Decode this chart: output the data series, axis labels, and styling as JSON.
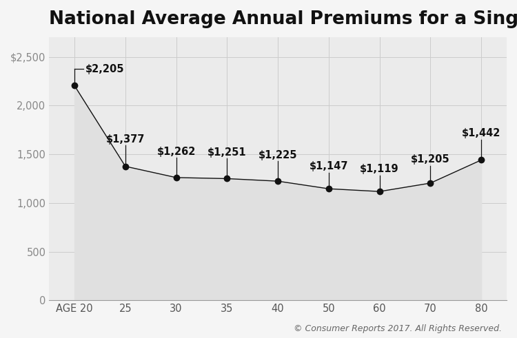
{
  "title": "National Average Annual Premiums for a Single Driver",
  "copyright": "© Consumer Reports 2017. All Rights Reserved.",
  "x_labels": [
    "AGE 20",
    "25",
    "30",
    "35",
    "40",
    "50",
    "60",
    "70",
    "80"
  ],
  "x_positions": [
    0,
    1,
    2,
    3,
    4,
    5,
    6,
    7,
    8
  ],
  "values": [
    2205,
    1377,
    1262,
    1251,
    1225,
    1147,
    1119,
    1205,
    1442
  ],
  "value_labels": [
    "$2,205",
    "$1,377",
    "$1,262",
    "$1,251",
    "$1,225",
    "$1,147",
    "$1,119",
    "$1,205",
    "$1,442"
  ],
  "ylim": [
    0,
    2700
  ],
  "yticks": [
    0,
    500,
    1000,
    1500,
    2000,
    2500
  ],
  "ytick_labels": [
    "0",
    "500",
    "1,000",
    "1,500",
    "2,000",
    "$2,500"
  ],
  "background_color": "#f5f5f5",
  "plot_bg_color": "#ebebeb",
  "area_fill_color": "#e0e0e0",
  "dot_color": "#111111",
  "line_color": "#111111",
  "title_fontsize": 19,
  "label_fontsize": 10.5,
  "tick_fontsize": 10.5,
  "copyright_fontsize": 9,
  "stem_offsets": [
    230,
    220,
    210,
    210,
    210,
    170,
    170,
    185,
    215
  ]
}
